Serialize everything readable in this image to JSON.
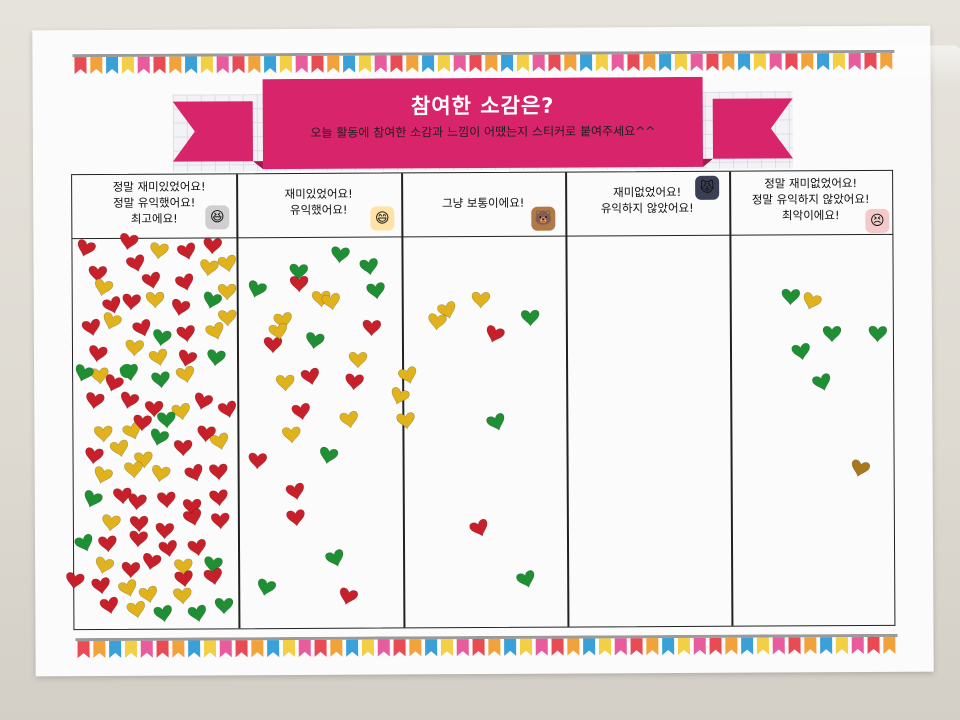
{
  "poster": {
    "title": "참여한 소감은?",
    "subtitle": "오늘 활동에 참여한 소감과 느낌이 어땠는지 스티커로 붙여주세요^^",
    "columns": [
      {
        "lines": [
          "정말 재미있었어요!",
          "정말 유익했어요!",
          "최고에요!"
        ],
        "face_icon": "excited-face-icon",
        "sticker_count": 94
      },
      {
        "lines": [
          "재미있었어요!",
          "유익했어요!"
        ],
        "face_icon": "happy-face-icon",
        "sticker_count": 30
      },
      {
        "lines": [
          "그냥 보통이에요!"
        ],
        "face_icon": "neutral-bear-icon",
        "sticker_count": 8
      },
      {
        "lines": [
          "재미없었어요!",
          "유익하지 않았어요!"
        ],
        "face_icon": "grumpy-cat-icon",
        "sticker_count": 0
      },
      {
        "lines": [
          "정말 재미없었어요!",
          "정말 유익하지 않았어요!",
          "최악이에요!"
        ],
        "face_icon": "sad-face-icon",
        "sticker_count": 7
      }
    ]
  },
  "colors": {
    "ribbon": "#d8246a",
    "ribbon_dark": "#a5184f",
    "heart_red": "#c8202a",
    "heart_gold": "#e0b21c",
    "heart_green": "#1f8f34",
    "heart_brown": "#a8781c",
    "bunting": [
      "#e94b55",
      "#f2a23a",
      "#3aa0d8",
      "#f2cf44",
      "#e85c9c"
    ]
  }
}
